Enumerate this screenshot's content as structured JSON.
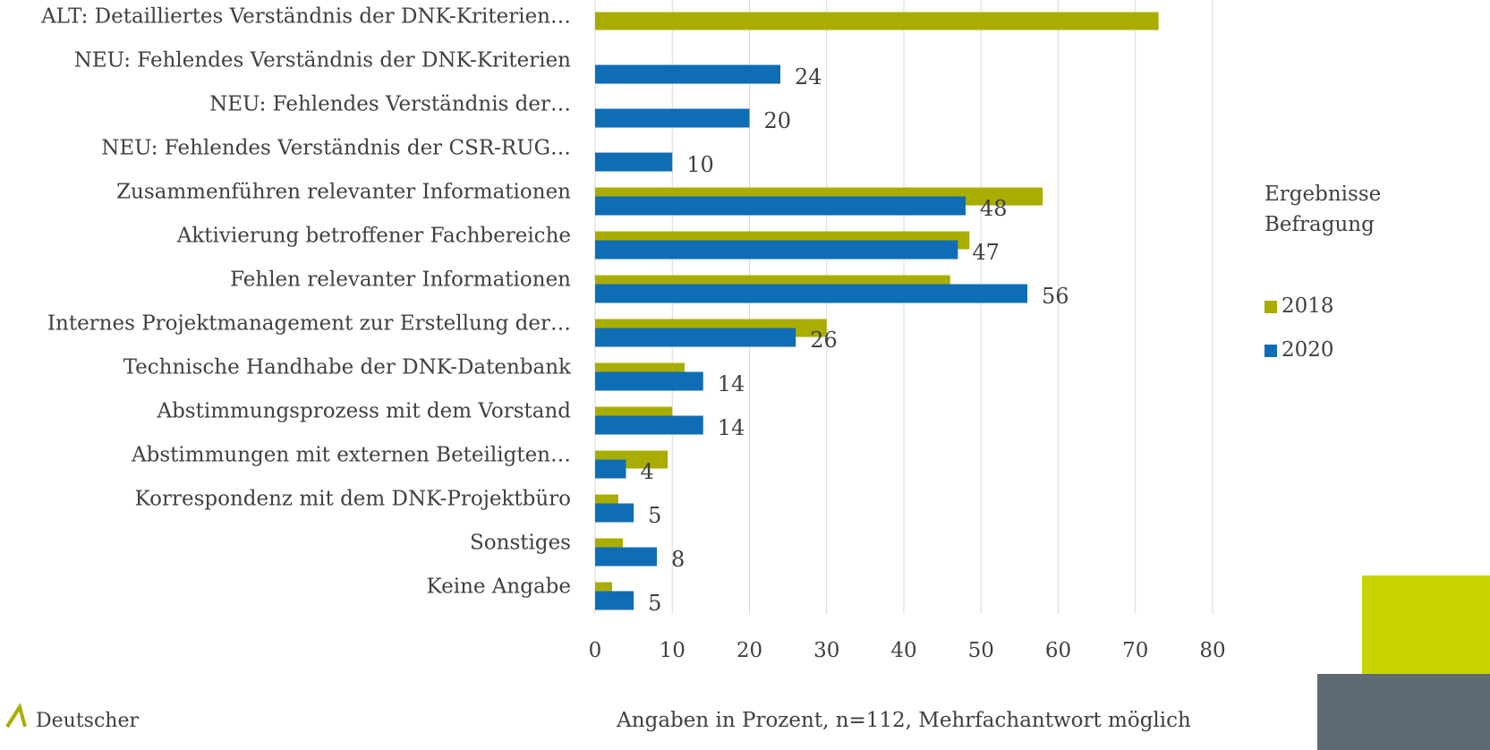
{
  "chart_data": {
    "type": "bar",
    "orientation": "horizontal",
    "categories": [
      "ALT: Detailliertes Verständnis der DNK-Kriterien…",
      "NEU: Fehlendes Verständnis der DNK-Kriterien",
      "NEU: Fehlendes Verständnis der…",
      "NEU: Fehlendes Verständnis der CSR-RUG…",
      "Zusammenführen relevanter Informationen",
      "Aktivierung betroffener Fachbereiche",
      "Fehlen relevanter Informationen",
      "Internes Projektmanagement zur Erstellung der…",
      "Technische Handhabe der DNK-Datenbank",
      "Abstimmungsprozess mit dem Vorstand",
      "Abstimmungen mit externen Beteiligten…",
      "Korrespondenz mit dem DNK-Projektbüro",
      "Sonstiges",
      "Keine Angabe"
    ],
    "series": [
      {
        "name": "2018",
        "color": "#a8ad00",
        "values": [
          73,
          null,
          null,
          null,
          58,
          48.5,
          46,
          30,
          11.6,
          10,
          9.4,
          3,
          3.6,
          2.2
        ]
      },
      {
        "name": "2020",
        "color": "#0f6db5",
        "values": [
          null,
          24,
          20,
          10,
          48,
          47,
          56,
          26,
          14,
          14,
          4,
          5,
          8,
          5
        ],
        "show_value_labels": true
      }
    ],
    "xlim": [
      0,
      80
    ],
    "xticks": [
      0,
      10,
      20,
      30,
      40,
      50,
      60,
      70,
      80
    ],
    "grid": true,
    "x_label": "Angaben in Prozent, n=112, Mehrfachantwort möglich",
    "legend_title": "Ergebnisse Befragung",
    "legend": "right",
    "logo_text": "Deutscher"
  }
}
